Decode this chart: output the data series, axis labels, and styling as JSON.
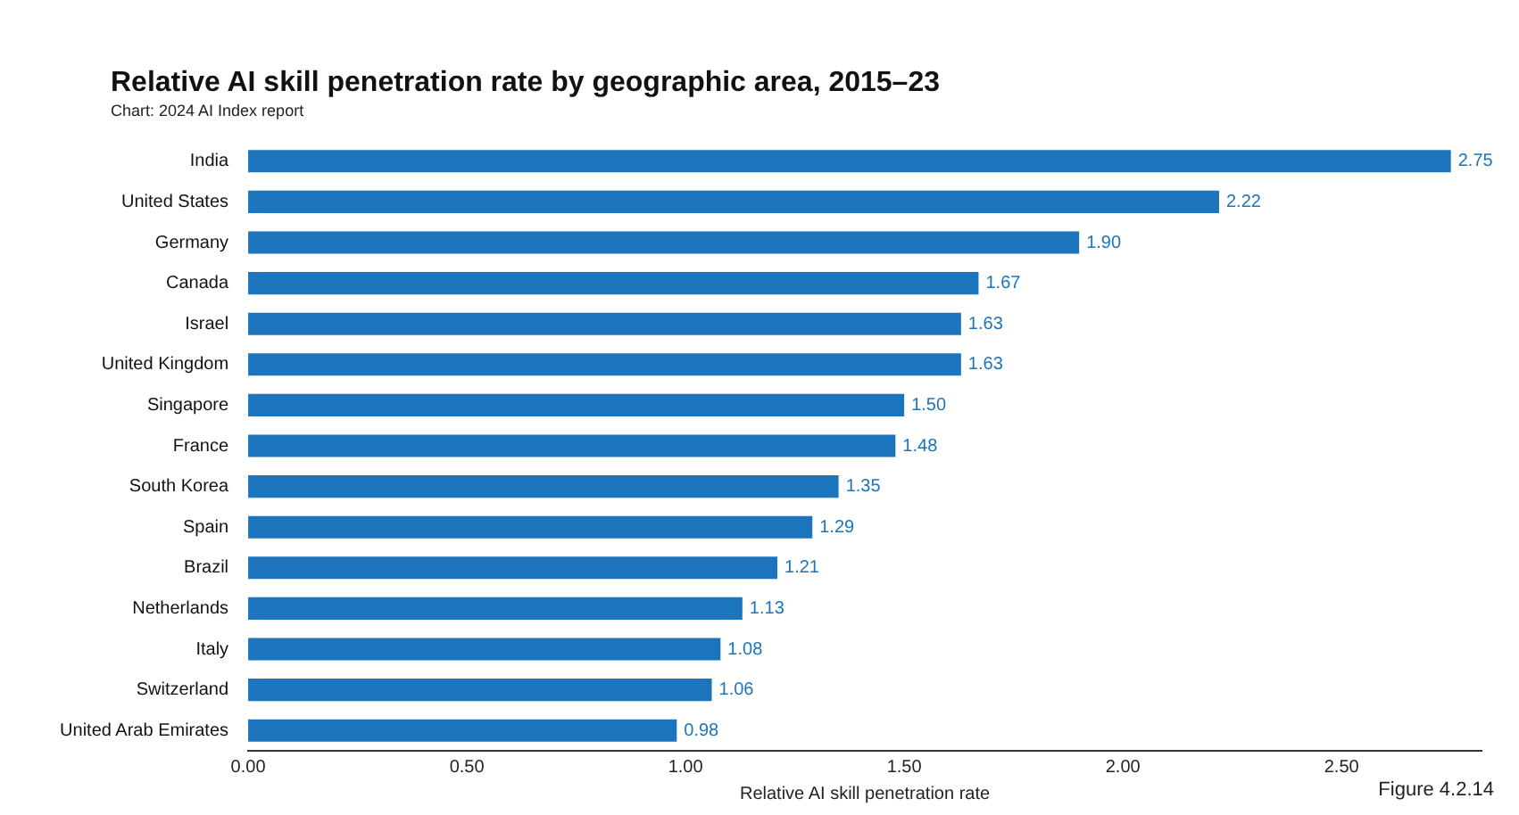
{
  "chart_data": {
    "type": "bar",
    "orientation": "horizontal",
    "title": "Relative AI skill penetration rate by geographic area, 2015–23",
    "subtitle": "Chart: 2024 AI Index report",
    "xlabel": "Relative AI skill penetration rate",
    "annotations": [
      "Figure 4.2.14"
    ],
    "categories": [
      "India",
      "United States",
      "Germany",
      "Canada",
      "Israel",
      "United Kingdom",
      "Singapore",
      "France",
      "South Korea",
      "Spain",
      "Brazil",
      "Netherlands",
      "Italy",
      "Switzerland",
      "United Arab Emirates"
    ],
    "values": [
      2.75,
      2.22,
      1.9,
      1.67,
      1.63,
      1.63,
      1.5,
      1.48,
      1.35,
      1.29,
      1.21,
      1.13,
      1.08,
      1.06,
      0.98
    ],
    "value_labels": [
      "2.75",
      "2.22",
      "1.90",
      "1.67",
      "1.63",
      "1.63",
      "1.50",
      "1.48",
      "1.35",
      "1.29",
      "1.21",
      "1.13",
      "1.08",
      "1.06",
      "0.98"
    ],
    "color": "#1c75bc",
    "xlim": [
      0,
      2.82
    ],
    "xticks": [
      {
        "value": 0,
        "label": "0.00"
      },
      {
        "value": 0.5,
        "label": "0.50"
      },
      {
        "value": 1,
        "label": "1.00"
      },
      {
        "value": 1.5,
        "label": "1.50"
      },
      {
        "value": 2,
        "label": "2.00"
      },
      {
        "value": 2.5,
        "label": "2.50"
      }
    ],
    "grid": false,
    "legend": false
  }
}
